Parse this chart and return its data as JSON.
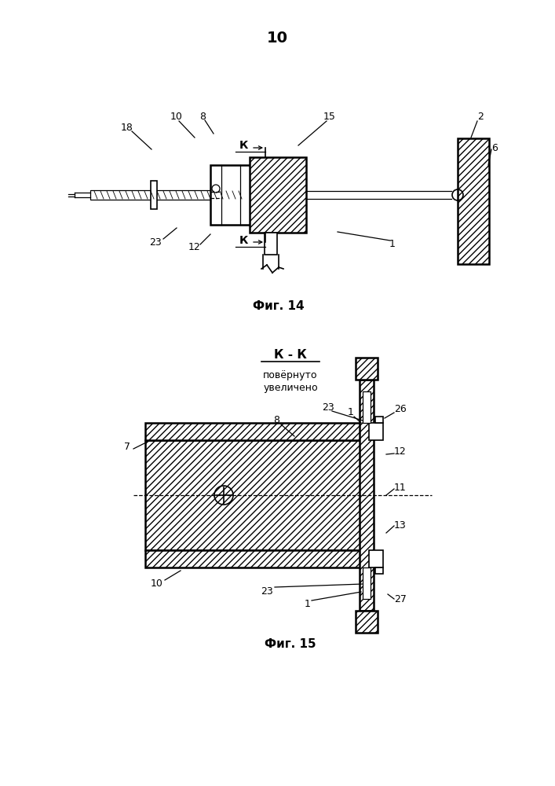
{
  "page_number": "10",
  "fig14_caption": "Фиг. 14",
  "fig15_caption": "Фиг. 15",
  "section_label": "К - К",
  "section_sub": "повёрнуто\nувеличено",
  "bg_color": "#ffffff",
  "line_color": "#000000"
}
